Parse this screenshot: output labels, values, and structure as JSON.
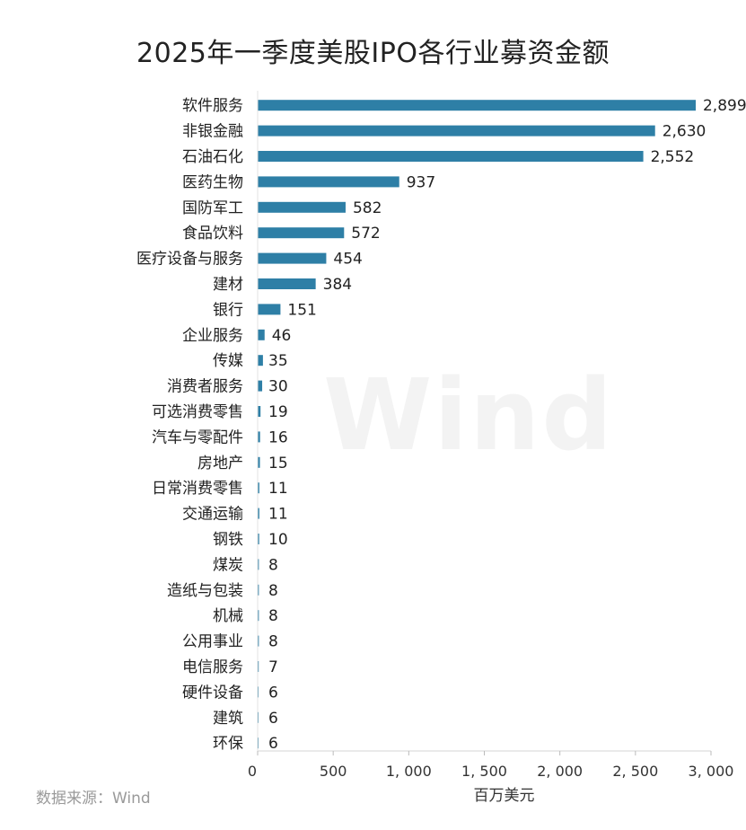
{
  "title": "2025年一季度美股IPO各行业募资金额",
  "source": "数据来源：Wind",
  "watermark": "Wind",
  "chart_data": {
    "type": "bar",
    "orientation": "horizontal",
    "title": "2025年一季度美股IPO各行业募资金额",
    "xlabel": "百万美元",
    "ylabel": "",
    "xlim": [
      0,
      3000
    ],
    "xticks": [
      0,
      500,
      1000,
      1500,
      2000,
      2500,
      3000
    ],
    "xtick_labels": [
      "0",
      "500",
      "1, 000",
      "1, 500",
      "2, 000",
      "2, 500",
      "3, 000"
    ],
    "grid": false,
    "legend": "none",
    "bar_color": "#2e7fa6",
    "categories": [
      "软件服务",
      "非银金融",
      "石油石化",
      "医药生物",
      "国防军工",
      "食品饮料",
      "医疗设备与服务",
      "建材",
      "银行",
      "企业服务",
      "传媒",
      "消费者服务",
      "可选消费零售",
      "汽车与零配件",
      "房地产",
      "日常消费零售",
      "交通运输",
      "钢铁",
      "煤炭",
      "造纸与包装",
      "机械",
      "公用事业",
      "电信服务",
      "硬件设备",
      "建筑",
      "环保"
    ],
    "values": [
      2899,
      2630,
      2552,
      937,
      582,
      572,
      454,
      384,
      151,
      46,
      35,
      30,
      19,
      16,
      15,
      11,
      11,
      10,
      8,
      8,
      8,
      8,
      7,
      6,
      6,
      6
    ],
    "value_labels": [
      "2,899",
      "2,630",
      "2,552",
      "937",
      "582",
      "572",
      "454",
      "384",
      "151",
      "46",
      "35",
      "30",
      "19",
      "16",
      "15",
      "11",
      "11",
      "10",
      "8",
      "8",
      "8",
      "8",
      "7",
      "6",
      "6",
      "6"
    ]
  }
}
